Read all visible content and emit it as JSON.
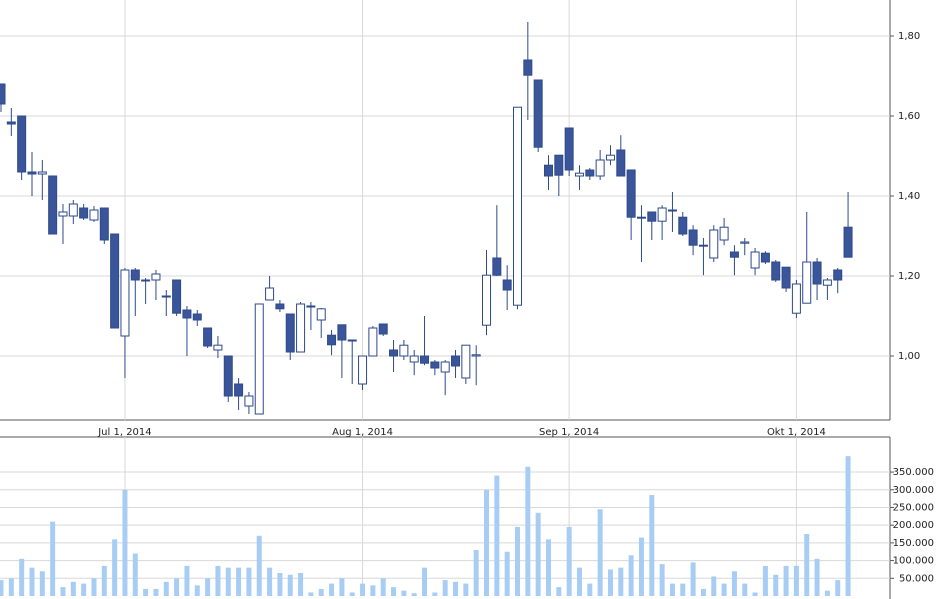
{
  "chart_data": [
    {
      "type": "candlestick",
      "categories": [
        null,
        null,
        null,
        null,
        null,
        null,
        null,
        null,
        null,
        null,
        null,
        null,
        "Jul 1, 2014",
        null,
        null,
        null,
        null,
        null,
        null,
        null,
        null,
        null,
        null,
        null,
        null,
        null,
        null,
        null,
        null,
        null,
        null,
        null,
        null,
        null,
        null,
        "Aug 1, 2014",
        null,
        null,
        null,
        null,
        null,
        null,
        null,
        null,
        null,
        null,
        null,
        null,
        null,
        null,
        null,
        null,
        null,
        null,
        null,
        "Sep 1, 2014",
        null,
        null,
        null,
        null,
        null,
        null,
        null,
        null,
        null,
        null,
        null,
        null,
        null,
        null,
        null,
        null,
        null,
        null,
        null,
        null,
        null,
        "Okt 1, 2014",
        null,
        null,
        null,
        null,
        null
      ],
      "open": [
        1.68,
        1.585,
        1.6,
        1.46,
        1.455,
        1.45,
        1.35,
        1.35,
        1.37,
        1.34,
        1.37,
        1.305,
        1.05,
        1.215,
        1.19,
        1.19,
        1.15,
        1.19,
        1.115,
        1.105,
        1.07,
        1.015,
        1.0,
        0.93,
        0.875,
        0.855,
        1.14,
        1.13,
        1.105,
        1.01,
        1.125,
        1.09,
        1.052,
        1.078,
        1.04,
        0.93,
        1.0,
        1.08,
        1.015,
        1.0,
        0.985,
        1.0,
        0.985,
        0.96,
        1.0,
        0.945,
        1.0,
        1.077,
        1.245,
        1.19,
        1.127,
        1.74,
        1.69,
        1.477,
        1.502,
        1.57,
        1.45,
        1.465,
        1.45,
        1.49,
        1.515,
        1.465,
        1.347,
        1.36,
        1.337,
        1.365,
        1.347,
        1.315,
        1.277,
        1.245,
        1.29,
        1.26,
        1.282,
        1.22,
        1.257,
        1.235,
        1.222,
        1.107,
        1.132,
        1.235,
        1.177,
        1.215,
        1.322
      ],
      "high": [
        1.68,
        1.62,
        1.6,
        1.51,
        1.49,
        1.45,
        1.38,
        1.39,
        1.38,
        1.375,
        1.37,
        1.305,
        1.22,
        1.22,
        1.195,
        1.215,
        1.165,
        1.19,
        1.125,
        1.115,
        1.07,
        1.05,
        1.0,
        0.945,
        0.91,
        1.13,
        1.2,
        1.14,
        1.105,
        1.135,
        1.135,
        1.12,
        1.065,
        1.078,
        1.04,
        1.0,
        1.075,
        1.08,
        1.04,
        1.04,
        1.015,
        1.1,
        0.99,
        0.99,
        1.015,
        1.027,
        1.027,
        1.265,
        1.377,
        1.227,
        1.622,
        1.835,
        1.69,
        1.502,
        1.502,
        1.57,
        1.477,
        1.47,
        1.515,
        1.527,
        1.552,
        1.465,
        1.377,
        1.36,
        1.377,
        1.41,
        1.36,
        1.327,
        1.295,
        1.327,
        1.345,
        1.277,
        1.295,
        1.27,
        1.262,
        1.24,
        1.222,
        1.19,
        1.36,
        1.245,
        1.195,
        1.22,
        1.41
      ],
      "low": [
        1.61,
        1.55,
        1.44,
        1.4,
        1.39,
        1.305,
        1.28,
        1.33,
        1.34,
        1.335,
        1.28,
        1.07,
        0.945,
        1.1,
        1.13,
        1.14,
        1.1,
        1.1,
        1.0,
        1.075,
        1.02,
        0.995,
        0.885,
        0.865,
        0.855,
        0.855,
        1.14,
        1.11,
        0.99,
        1.01,
        1.065,
        1.045,
        1.002,
        0.945,
        0.93,
        0.915,
        1.0,
        1.05,
        0.96,
        0.99,
        0.952,
        0.977,
        0.952,
        0.902,
        0.945,
        0.93,
        0.927,
        1.052,
        1.2,
        1.115,
        1.117,
        1.59,
        1.51,
        1.415,
        1.4,
        1.45,
        1.415,
        1.44,
        1.44,
        1.477,
        1.45,
        1.29,
        1.235,
        1.29,
        1.29,
        1.31,
        1.3,
        1.252,
        1.202,
        1.235,
        1.277,
        1.202,
        1.252,
        1.202,
        1.23,
        1.185,
        1.16,
        1.095,
        1.132,
        1.14,
        1.14,
        1.157,
        1.247
      ],
      "close": [
        1.63,
        1.58,
        1.46,
        1.455,
        1.46,
        1.305,
        1.36,
        1.38,
        1.345,
        1.365,
        1.29,
        1.07,
        1.215,
        1.19,
        1.19,
        1.205,
        1.148,
        1.107,
        1.095,
        1.09,
        1.025,
        1.027,
        0.9,
        0.9,
        0.9,
        1.13,
        1.17,
        1.118,
        1.01,
        1.13,
        1.125,
        1.118,
        1.028,
        1.04,
        1.04,
        1.0,
        1.07,
        1.055,
        1.0,
        1.027,
        1.0,
        0.982,
        0.97,
        0.985,
        0.975,
        1.027,
        1.003,
        1.202,
        1.202,
        1.165,
        1.622,
        1.702,
        1.522,
        1.45,
        1.452,
        1.465,
        1.457,
        1.45,
        1.49,
        1.502,
        1.45,
        1.347,
        1.345,
        1.337,
        1.37,
        1.365,
        1.305,
        1.277,
        1.277,
        1.315,
        1.322,
        1.247,
        1.285,
        1.26,
        1.235,
        1.19,
        1.17,
        1.18,
        1.235,
        1.18,
        1.19,
        1.19,
        1.247
      ],
      "up_color": "#ffffff",
      "down_color": "#3a559a",
      "line_color": "#2e4a8a",
      "ylim": [
        0.84,
        1.89
      ],
      "yticks": [
        {
          "value": 1.0,
          "label": "1,00"
        },
        {
          "value": 1.2,
          "label": "1,20"
        },
        {
          "value": 1.4,
          "label": "1,40"
        },
        {
          "value": 1.6,
          "label": "1,60"
        },
        {
          "value": 1.8,
          "label": "1,80"
        }
      ],
      "grid": true
    },
    {
      "type": "bar",
      "values": [
        45000,
        50000,
        105000,
        80000,
        70000,
        210000,
        25000,
        40000,
        35000,
        50000,
        85000,
        160000,
        300000,
        120000,
        20000,
        20000,
        40000,
        50000,
        85000,
        30000,
        50000,
        85000,
        80000,
        80000,
        80000,
        170000,
        80000,
        65000,
        60000,
        65000,
        10000,
        20000,
        35000,
        50000,
        10000,
        35000,
        30000,
        50000,
        25000,
        15000,
        8000,
        80000,
        10000,
        45000,
        40000,
        35000,
        130000,
        300000,
        340000,
        125000,
        195000,
        365000,
        235000,
        160000,
        25000,
        195000,
        80000,
        35000,
        245000,
        75000,
        80000,
        115000,
        165000,
        285000,
        90000,
        35000,
        35000,
        95000,
        20000,
        55000,
        35000,
        70000,
        35000,
        10000,
        85000,
        60000,
        85000,
        85000,
        175000,
        105000,
        15000,
        45000,
        395000
      ],
      "color": "#a8cdf5",
      "ylim": [
        0,
        449000
      ],
      "yticks": [
        {
          "value": 50000,
          "label": "50.000"
        },
        {
          "value": 100000,
          "label": "100.000"
        },
        {
          "value": 150000,
          "label": "150.000"
        },
        {
          "value": 200000,
          "label": "200.000"
        },
        {
          "value": 250000,
          "label": "250.000"
        },
        {
          "value": 300000,
          "label": "300.000"
        },
        {
          "value": 350000,
          "label": "350.000"
        }
      ],
      "grid": true
    }
  ]
}
